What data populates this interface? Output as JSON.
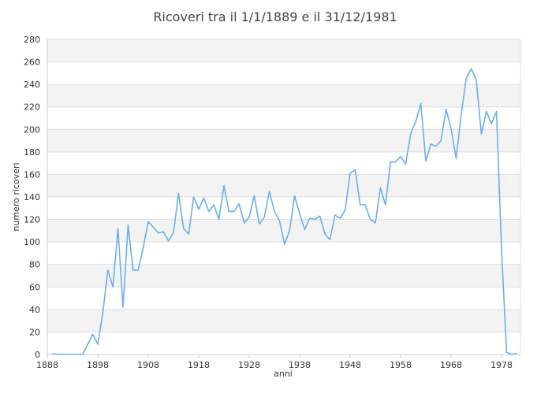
{
  "chart_data": {
    "type": "line",
    "title": "Ricoveri tra il 1/1/1889 e il 31/12/1981",
    "xlabel": "anni",
    "ylabel": "numero ricoveri",
    "xlim": [
      1888,
      1982
    ],
    "ylim": [
      0,
      280
    ],
    "xticks": [
      1888,
      1898,
      1908,
      1918,
      1928,
      1938,
      1948,
      1958,
      1968,
      1978
    ],
    "yticks": [
      0,
      20,
      40,
      60,
      80,
      100,
      120,
      140,
      160,
      180,
      200,
      220,
      240,
      260,
      280
    ],
    "grid": true,
    "legend": "none",
    "colors": {
      "line": "#6aaef2",
      "band": "#f3f3f3",
      "grid": "#dddddd"
    },
    "x": [
      1889,
      1890,
      1891,
      1892,
      1893,
      1894,
      1895,
      1896,
      1897,
      1898,
      1899,
      1900,
      1901,
      1902,
      1903,
      1904,
      1905,
      1906,
      1907,
      1908,
      1909,
      1910,
      1911,
      1912,
      1913,
      1914,
      1915,
      1916,
      1917,
      1918,
      1919,
      1920,
      1921,
      1922,
      1923,
      1924,
      1925,
      1926,
      1927,
      1928,
      1929,
      1930,
      1931,
      1932,
      1933,
      1934,
      1935,
      1936,
      1937,
      1938,
      1939,
      1940,
      1941,
      1942,
      1943,
      1944,
      1945,
      1946,
      1947,
      1948,
      1949,
      1950,
      1951,
      1952,
      1953,
      1954,
      1955,
      1956,
      1957,
      1958,
      1959,
      1960,
      1961,
      1962,
      1963,
      1964,
      1965,
      1966,
      1967,
      1968,
      1969,
      1970,
      1971,
      1972,
      1973,
      1974,
      1975,
      1976,
      1977,
      1978,
      1979,
      1980,
      1981
    ],
    "values": [
      1,
      0,
      0,
      0,
      0,
      0,
      0,
      9,
      18,
      9,
      37,
      75,
      60,
      112,
      42,
      115,
      75,
      75,
      95,
      118,
      113,
      108,
      109,
      101,
      108,
      143,
      112,
      107,
      140,
      129,
      139,
      127,
      133,
      120,
      150,
      127,
      127,
      134,
      117,
      122,
      141,
      116,
      122,
      145,
      127,
      119,
      98,
      110,
      141,
      125,
      111,
      121,
      120,
      123,
      107,
      102,
      124,
      121,
      128,
      161,
      164,
      133,
      133,
      120,
      117,
      148,
      133,
      171,
      171,
      176,
      169,
      196,
      207,
      223,
      172,
      187,
      185,
      190,
      218,
      201,
      174,
      213,
      245,
      254,
      244,
      196,
      216,
      205,
      216,
      93,
      2,
      0,
      1
    ]
  }
}
